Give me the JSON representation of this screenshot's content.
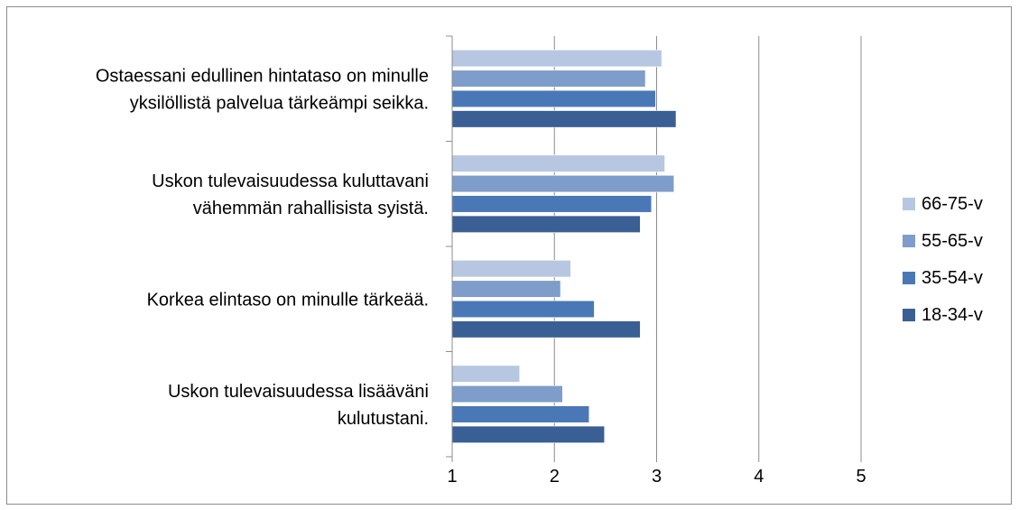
{
  "chart_data": {
    "type": "bar",
    "orientation": "horizontal",
    "categories": [
      [
        "Ostaessani edullinen hintataso on minulle",
        "yksilöllistä palvelua tärkeämpi seikka."
      ],
      [
        "Uskon tulevaisuudessa kuluttavani",
        "vähemmän rahallisista syistä."
      ],
      [
        "Korkea elintaso on minulle tärkeää."
      ],
      [
        "Uskon tulevaisuudessa lisääväni",
        "kulutustani."
      ]
    ],
    "series": [
      {
        "name": "66-75-v",
        "color": "#b7c7e1",
        "values": [
          3.05,
          3.08,
          2.16,
          1.66
        ]
      },
      {
        "name": "55-65-v",
        "color": "#7f9dcb",
        "values": [
          2.89,
          3.17,
          2.06,
          2.08
        ]
      },
      {
        "name": "35-54-v",
        "color": "#4a78b7",
        "values": [
          2.99,
          2.95,
          2.39,
          2.34
        ]
      },
      {
        "name": "18-34-v",
        "color": "#3a5f95",
        "values": [
          3.19,
          2.84,
          2.84,
          2.49
        ]
      }
    ],
    "xlim": [
      1,
      5
    ],
    "xticks": [
      "1",
      "2",
      "3",
      "4",
      "5"
    ],
    "grid": true,
    "legend_position": "right",
    "legend_order": [
      "66-75-v",
      "55-65-v",
      "35-54-v",
      "18-34-v"
    ]
  }
}
